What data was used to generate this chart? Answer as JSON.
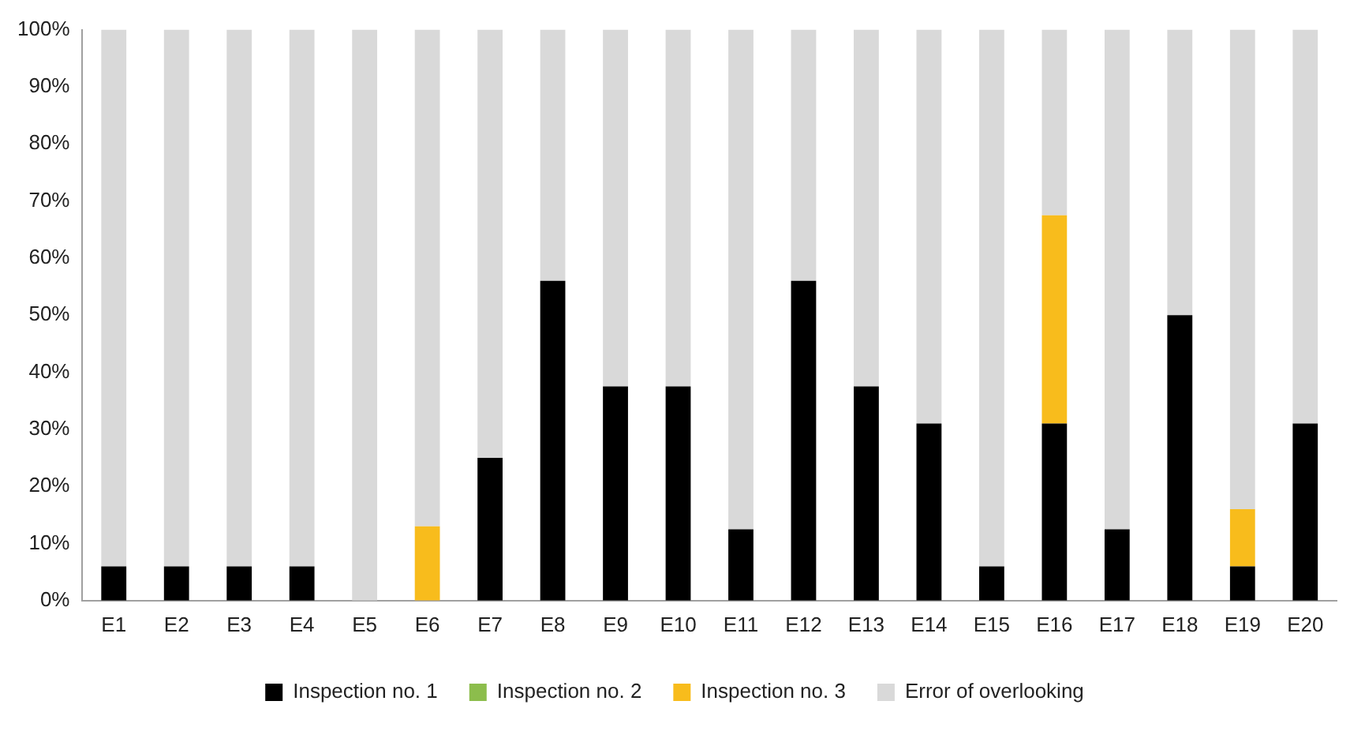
{
  "chart_data": {
    "type": "bar",
    "stacked": true,
    "categories": [
      "E1",
      "E2",
      "E3",
      "E4",
      "E5",
      "E6",
      "E7",
      "E8",
      "E9",
      "E10",
      "E11",
      "E12",
      "E13",
      "E14",
      "E15",
      "E16",
      "E17",
      "E18",
      "E19",
      "E20"
    ],
    "series": [
      {
        "name": "Inspection no. 1",
        "color": "#000000",
        "values": [
          6,
          6,
          6,
          6,
          0,
          0,
          25,
          56,
          37.5,
          37.5,
          12.5,
          56,
          37.5,
          31,
          6,
          31,
          12.5,
          50,
          6,
          31
        ]
      },
      {
        "name": "Inspection no. 2",
        "color": "#8cbd4c",
        "values": [
          0,
          0,
          0,
          0,
          0,
          0,
          0,
          0,
          0,
          0,
          0,
          0,
          0,
          0,
          0,
          0,
          0,
          0,
          0,
          0
        ]
      },
      {
        "name": "Inspection no. 3",
        "color": "#f8bc1c",
        "values": [
          0,
          0,
          0,
          0,
          0,
          13,
          0,
          0,
          0,
          0,
          0,
          0,
          0,
          0,
          0,
          36.5,
          0,
          0,
          10,
          0
        ]
      },
      {
        "name": "Error of overlooking",
        "color": "#d9d9d9",
        "values": [
          94,
          94,
          94,
          94,
          100,
          87,
          75,
          44,
          62.5,
          62.5,
          87.5,
          44,
          62.5,
          69,
          94,
          32.5,
          87.5,
          50,
          84,
          69
        ]
      }
    ],
    "ylim": [
      0,
      100
    ],
    "yticks": [
      {
        "value": 0,
        "label": "0%"
      },
      {
        "value": 10,
        "label": "10%"
      },
      {
        "value": 20,
        "label": "20%"
      },
      {
        "value": 30,
        "label": "30%"
      },
      {
        "value": 40,
        "label": "40%"
      },
      {
        "value": 50,
        "label": "50%"
      },
      {
        "value": 60,
        "label": "60%"
      },
      {
        "value": 70,
        "label": "70%"
      },
      {
        "value": 80,
        "label": "80%"
      },
      {
        "value": 90,
        "label": "90%"
      },
      {
        "value": 100,
        "label": "100%"
      }
    ],
    "grid": false,
    "legend": "bottom"
  }
}
